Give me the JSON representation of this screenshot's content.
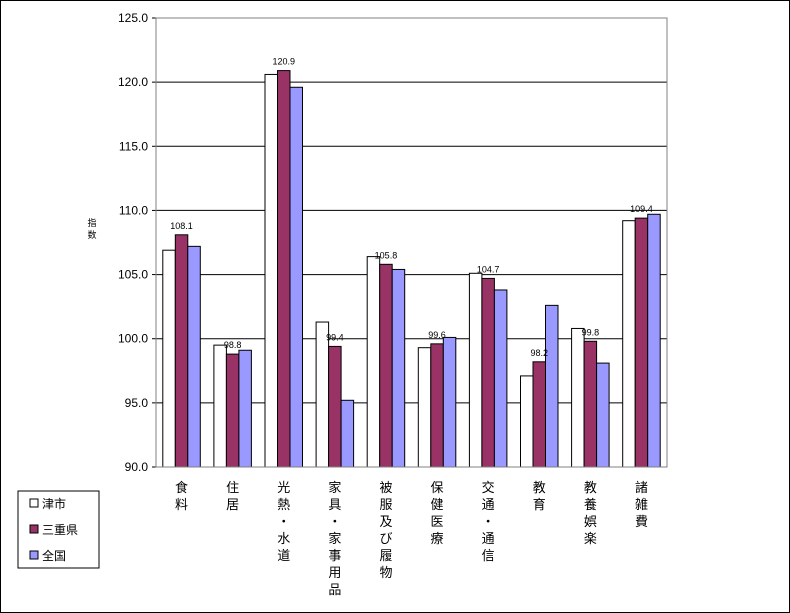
{
  "chart_data": {
    "type": "bar",
    "ylabel": "指数",
    "ylim": [
      90,
      125
    ],
    "yticks": [
      "90.0",
      "95.0",
      "100.0",
      "105.0",
      "110.0",
      "115.0",
      "120.0",
      "125.0"
    ],
    "grid": true,
    "legend_position": "bottom-left",
    "categories": [
      "食料",
      "住居",
      "光熱・水道",
      "家具・家事用品",
      "被服及び履物",
      "保健医療",
      "交通・通信",
      "教育",
      "教養娯楽",
      "諸雑費"
    ],
    "series": [
      {
        "name": "津市",
        "color": "#ffffff",
        "values": [
          106.9,
          99.5,
          120.6,
          101.3,
          106.4,
          99.3,
          105.1,
          97.1,
          100.8,
          109.2
        ]
      },
      {
        "name": "三重県",
        "color": "#993366",
        "values": [
          108.1,
          98.8,
          120.9,
          99.4,
          105.8,
          99.6,
          104.7,
          98.2,
          99.8,
          109.4
        ]
      },
      {
        "name": "全国",
        "color": "#9999ff",
        "values": [
          107.2,
          99.1,
          119.6,
          95.2,
          105.4,
          100.1,
          103.8,
          102.6,
          98.1,
          109.7
        ]
      }
    ],
    "data_labels": [
      "108.1",
      "98.8",
      "120.9",
      "99.4",
      "105.8",
      "99.6",
      "104.7",
      "98.2",
      "99.8",
      "109.4"
    ]
  }
}
